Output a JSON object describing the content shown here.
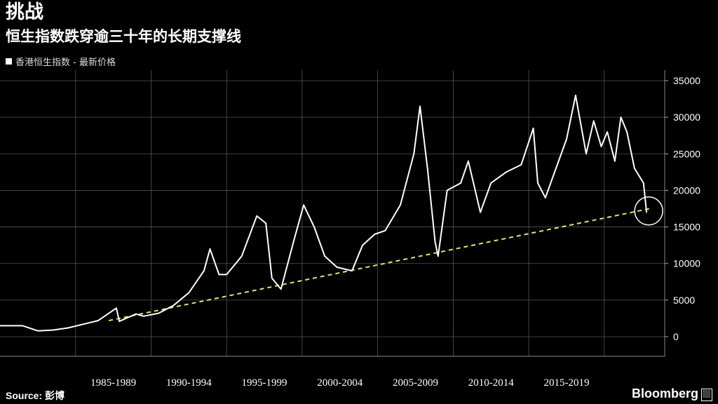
{
  "header": {
    "title": "挑战",
    "subtitle": "恒生指数跌穿逾三十年的长期支撑线"
  },
  "footer": {
    "source": "Source: 彭博",
    "logo": "Bloomberg"
  },
  "colors": {
    "background": "#000000",
    "series": "#ffffff",
    "trendline": "#e6e07a",
    "grid": "#555555"
  },
  "chart_data": {
    "type": "line",
    "title": "",
    "xlabel": "",
    "ylabel": "",
    "ylim": [
      0,
      35000
    ],
    "y_ticks": [
      "0",
      "5000",
      "10000",
      "15000",
      "20000",
      "25000",
      "30000",
      "35000"
    ],
    "y_axis_side": "right",
    "x_ticks": [
      "1985-1989",
      "1990-1994",
      "1995-1999",
      "2000-2004",
      "2005-2009",
      "2010-2014",
      "2015-2019"
    ],
    "xlim": [
      1980.0,
      2024.0
    ],
    "grid": true,
    "legend": "top-left",
    "series": [
      {
        "name": "香港恒生指数 - 最新价格",
        "x": [
          1980.0,
          1981.5,
          1982.5,
          1983.5,
          1984.5,
          1985.5,
          1986.5,
          1987.7,
          1987.9,
          1989.0,
          1989.5,
          1990.5,
          1991.5,
          1992.5,
          1993.5,
          1993.9,
          1994.5,
          1995.0,
          1996.0,
          1997.0,
          1997.6,
          1998.0,
          1998.6,
          1999.5,
          2000.1,
          2000.8,
          2001.5,
          2002.3,
          2003.3,
          2004.0,
          2004.8,
          2005.5,
          2006.5,
          2007.4,
          2007.8,
          2008.3,
          2008.8,
          2009.0,
          2009.6,
          2010.5,
          2011.0,
          2011.8,
          2012.5,
          2013.5,
          2014.5,
          2015.3,
          2015.6,
          2016.1,
          2016.8,
          2017.5,
          2018.1,
          2018.8,
          2019.3,
          2019.8,
          2020.2,
          2020.7,
          2021.1,
          2021.5,
          2022.0,
          2022.6,
          2022.8
        ],
        "y": [
          1500,
          1500,
          800,
          900,
          1200,
          1700,
          2200,
          3900,
          2100,
          3100,
          2800,
          3200,
          4300,
          6000,
          9000,
          12000,
          8500,
          8500,
          11000,
          16500,
          15500,
          8000,
          6500,
          13500,
          18000,
          15000,
          11000,
          9500,
          9000,
          12500,
          14000,
          14500,
          18000,
          25000,
          31500,
          23000,
          13000,
          11000,
          20000,
          21000,
          24000,
          17000,
          21000,
          22500,
          23500,
          28500,
          21000,
          19000,
          23000,
          27000,
          33000,
          25000,
          29500,
          26000,
          28000,
          24000,
          30000,
          28000,
          23000,
          21000,
          17000
        ]
      }
    ],
    "trendline": {
      "x": [
        1987.2,
        2023.0
      ],
      "y": [
        2200,
        17500
      ]
    },
    "annotation": {
      "type": "circle",
      "x": 2022.8,
      "y": 17000
    }
  }
}
